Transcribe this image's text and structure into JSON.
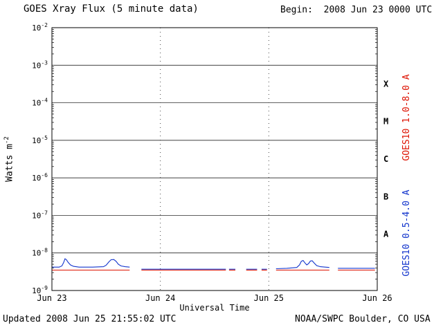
{
  "header": {
    "title": "GOES Xray Flux (5 minute data)",
    "begin_label": "Begin:  2008 Jun 23 0000 UTC"
  },
  "footer": {
    "updated": "Updated 2008 Jun 25 21:55:02 UTC",
    "source": "NOAA/SWPC Boulder, CO USA"
  },
  "chart_data": {
    "type": "line",
    "title": "GOES Xray Flux (5 minute data)",
    "xlabel": "Universal Time",
    "ylabel_text": "Watts m",
    "ylabel_exp": "-2",
    "x_axis": {
      "unit": "hours since 2008 Jun 23 0000 UTC",
      "range": [
        0,
        72
      ]
    },
    "ylim_exp": [
      -9,
      -2
    ],
    "y_tick_exponents": [
      -2,
      -3,
      -4,
      -5,
      -6,
      -7,
      -8,
      -9
    ],
    "x_ticks": [
      {
        "label": "Jun 23",
        "hour": 0
      },
      {
        "label": "Jun 24",
        "hour": 24
      },
      {
        "label": "Jun 25",
        "hour": 48
      },
      {
        "label": "Jun 26",
        "hour": 72
      }
    ],
    "grid": {
      "horizontal": "solid lines at each decade",
      "vertical": "dotted lines at day boundaries",
      "legend_position": "right-rotated"
    },
    "flare_classes": [
      {
        "label": "X",
        "value": 0.000316
      },
      {
        "label": "M",
        "value": 3.16e-05
      },
      {
        "label": "C",
        "value": 3.16e-06
      },
      {
        "label": "B",
        "value": 3.16e-07
      },
      {
        "label": "A",
        "value": 3.16e-08
      }
    ],
    "series": [
      {
        "name": "GOES10 1.0-8.0 A",
        "color": "#dd1100",
        "segments": [
          [
            [
              0,
              3.5e-09
            ],
            [
              17.2,
              3.5e-09
            ]
          ],
          [
            [
              19.8,
              3.5e-09
            ],
            [
              38.5,
              3.5e-09
            ]
          ],
          [
            [
              39.2,
              3.5e-09
            ],
            [
              40.6,
              3.5e-09
            ]
          ],
          [
            [
              43.0,
              3.5e-09
            ],
            [
              45.4,
              3.5e-09
            ]
          ],
          [
            [
              46.4,
              3.5e-09
            ],
            [
              47.6,
              3.5e-09
            ]
          ],
          [
            [
              49.6,
              3.5e-09
            ],
            [
              61.4,
              3.5e-09
            ]
          ],
          [
            [
              63.3,
              3.5e-09
            ],
            [
              71.5,
              3.5e-09
            ]
          ]
        ]
      },
      {
        "name": "GOES10 0.5-4.0 A",
        "color": "#1133cc",
        "segments": [
          [
            [
              0,
              4.2e-09
            ],
            [
              1.6,
              4.2e-09
            ],
            [
              2.2,
              4.5e-09
            ],
            [
              2.6,
              5.6e-09
            ],
            [
              2.9,
              7e-09
            ],
            [
              3.2,
              6.6e-09
            ],
            [
              3.6,
              5.6e-09
            ],
            [
              4.1,
              4.8e-09
            ],
            [
              4.8,
              4.4e-09
            ],
            [
              6.0,
              4.2e-09
            ],
            [
              9.0,
              4.2e-09
            ],
            [
              11.4,
              4.3e-09
            ],
            [
              12.0,
              4.7e-09
            ],
            [
              12.6,
              5.8e-09
            ],
            [
              13.1,
              6.6e-09
            ],
            [
              13.7,
              6.7e-09
            ],
            [
              14.2,
              6e-09
            ],
            [
              14.7,
              5e-09
            ],
            [
              15.3,
              4.5e-09
            ],
            [
              16.2,
              4.3e-09
            ],
            [
              17.2,
              4.2e-09
            ]
          ],
          [
            [
              19.8,
              3.7e-09
            ],
            [
              38.5,
              3.7e-09
            ]
          ],
          [
            [
              39.2,
              3.7e-09
            ],
            [
              40.6,
              3.7e-09
            ]
          ],
          [
            [
              43.0,
              3.7e-09
            ],
            [
              45.4,
              3.7e-09
            ]
          ],
          [
            [
              46.4,
              3.7e-09
            ],
            [
              47.6,
              3.7e-09
            ]
          ],
          [
            [
              49.6,
              3.8e-09
            ],
            [
              52.0,
              3.9e-09
            ],
            [
              54.2,
              4.1e-09
            ],
            [
              54.8,
              4.8e-09
            ],
            [
              55.2,
              6e-09
            ],
            [
              55.6,
              6.3e-09
            ],
            [
              56.0,
              5.4e-09
            ],
            [
              56.4,
              4.8e-09
            ],
            [
              56.8,
              5.2e-09
            ],
            [
              57.2,
              6.1e-09
            ],
            [
              57.6,
              6.2e-09
            ],
            [
              58.1,
              5.3e-09
            ],
            [
              58.6,
              4.6e-09
            ],
            [
              59.4,
              4.3e-09
            ],
            [
              60.5,
              4.2e-09
            ],
            [
              61.4,
              4.1e-09
            ]
          ],
          [
            [
              63.3,
              3.9e-09
            ],
            [
              71.5,
              3.9e-09
            ]
          ]
        ]
      }
    ]
  }
}
